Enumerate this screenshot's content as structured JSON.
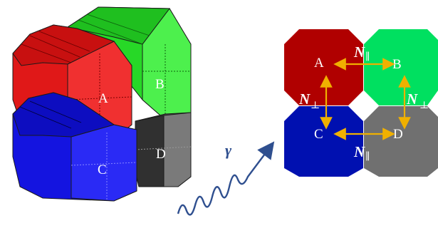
{
  "detector_3d": {
    "crystals": [
      {
        "id": "A",
        "label": "A",
        "color": "#f01e1e"
      },
      {
        "id": "B",
        "label": "B",
        "color": "#2ee02e"
      },
      {
        "id": "C",
        "label": "C",
        "color": "#1a1aee"
      },
      {
        "id": "D",
        "label": "D",
        "color": "#555555"
      }
    ]
  },
  "photon": {
    "symbol": "γ",
    "color": "#2f4f8f"
  },
  "schematic": {
    "crystals": [
      {
        "id": "A",
        "label": "A",
        "color": "#b00000"
      },
      {
        "id": "B",
        "label": "B",
        "color": "#00e060"
      },
      {
        "id": "C",
        "label": "C",
        "color": "#0010b0"
      },
      {
        "id": "D",
        "label": "D",
        "color": "#707070"
      }
    ],
    "arrow_color": "#f0b000",
    "neighbor_labels": {
      "parallel_top": {
        "symbol": "N",
        "subscript": "∥"
      },
      "parallel_bottom": {
        "symbol": "N",
        "subscript": "∥"
      },
      "perp_left": {
        "symbol": "N",
        "subscript": "⊥"
      },
      "perp_right": {
        "symbol": "N",
        "subscript": "⊥"
      }
    }
  }
}
